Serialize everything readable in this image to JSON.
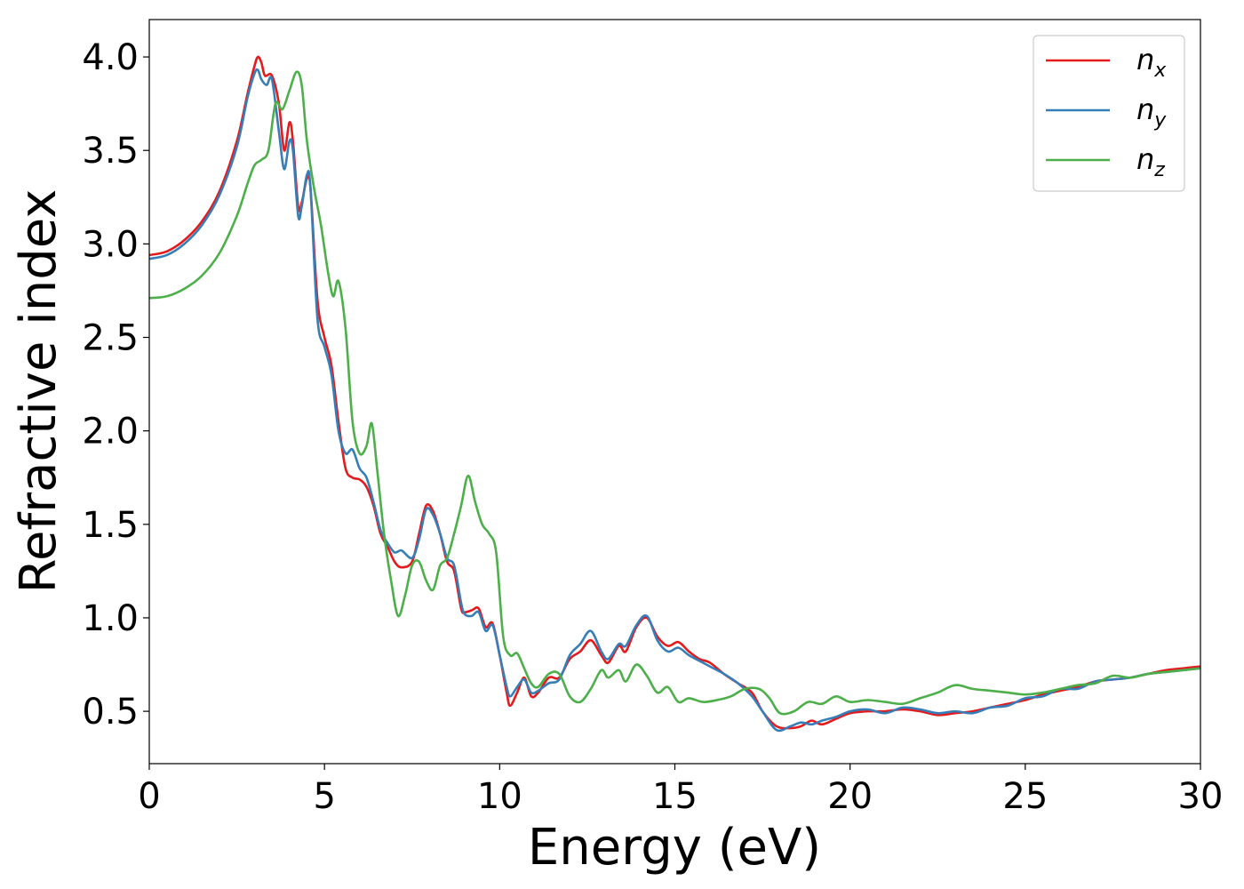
{
  "chart_data": {
    "type": "line",
    "xlabel": "Energy (eV)",
    "ylabel": "Refractive index",
    "xlim": [
      0,
      30
    ],
    "ylim": [
      0.22,
      4.2
    ],
    "xticks": [
      0,
      5,
      10,
      15,
      20,
      25,
      30
    ],
    "xtick_labels": [
      "0",
      "5",
      "10",
      "15",
      "20",
      "25",
      "30"
    ],
    "yticks": [
      0.5,
      1.0,
      1.5,
      2.0,
      2.5,
      3.0,
      3.5,
      4.0
    ],
    "ytick_labels": [
      "0.5",
      "1.0",
      "1.5",
      "2.0",
      "2.5",
      "3.0",
      "3.5",
      "4.0"
    ],
    "grid": false,
    "legend_position": "top-right",
    "series": [
      {
        "name": "n_x",
        "label_base": "n",
        "label_sub": "x",
        "color": "#e41a1c",
        "points": [
          [
            0,
            2.94
          ],
          [
            0.5,
            2.96
          ],
          [
            1.0,
            3.02
          ],
          [
            1.5,
            3.12
          ],
          [
            2.0,
            3.28
          ],
          [
            2.5,
            3.55
          ],
          [
            2.8,
            3.8
          ],
          [
            3.0,
            3.95
          ],
          [
            3.1,
            4.0
          ],
          [
            3.2,
            3.97
          ],
          [
            3.3,
            3.9
          ],
          [
            3.5,
            3.9
          ],
          [
            3.7,
            3.75
          ],
          [
            3.85,
            3.5
          ],
          [
            4.0,
            3.65
          ],
          [
            4.1,
            3.55
          ],
          [
            4.25,
            3.2
          ],
          [
            4.35,
            3.22
          ],
          [
            4.5,
            3.35
          ],
          [
            4.6,
            3.3
          ],
          [
            4.8,
            2.7
          ],
          [
            5.0,
            2.5
          ],
          [
            5.2,
            2.35
          ],
          [
            5.4,
            2.05
          ],
          [
            5.6,
            1.8
          ],
          [
            5.8,
            1.75
          ],
          [
            6.0,
            1.74
          ],
          [
            6.2,
            1.7
          ],
          [
            6.4,
            1.6
          ],
          [
            6.6,
            1.45
          ],
          [
            6.8,
            1.38
          ],
          [
            7.0,
            1.3
          ],
          [
            7.2,
            1.27
          ],
          [
            7.5,
            1.3
          ],
          [
            7.7,
            1.45
          ],
          [
            7.9,
            1.6
          ],
          [
            8.1,
            1.57
          ],
          [
            8.3,
            1.45
          ],
          [
            8.5,
            1.3
          ],
          [
            8.7,
            1.25
          ],
          [
            8.9,
            1.05
          ],
          [
            9.0,
            1.03
          ],
          [
            9.2,
            1.04
          ],
          [
            9.4,
            1.05
          ],
          [
            9.6,
            0.95
          ],
          [
            9.8,
            0.97
          ],
          [
            10.0,
            0.8
          ],
          [
            10.2,
            0.6
          ],
          [
            10.3,
            0.53
          ],
          [
            10.5,
            0.6
          ],
          [
            10.7,
            0.68
          ],
          [
            10.9,
            0.58
          ],
          [
            11.1,
            0.6
          ],
          [
            11.4,
            0.68
          ],
          [
            11.7,
            0.68
          ],
          [
            12.0,
            0.78
          ],
          [
            12.3,
            0.82
          ],
          [
            12.6,
            0.88
          ],
          [
            12.9,
            0.8
          ],
          [
            13.1,
            0.76
          ],
          [
            13.4,
            0.85
          ],
          [
            13.6,
            0.82
          ],
          [
            13.9,
            0.95
          ],
          [
            14.2,
            1.0
          ],
          [
            14.5,
            0.9
          ],
          [
            14.8,
            0.85
          ],
          [
            15.1,
            0.87
          ],
          [
            15.4,
            0.82
          ],
          [
            15.7,
            0.78
          ],
          [
            16.0,
            0.76
          ],
          [
            16.4,
            0.7
          ],
          [
            16.8,
            0.65
          ],
          [
            17.2,
            0.6
          ],
          [
            17.5,
            0.5
          ],
          [
            17.9,
            0.42
          ],
          [
            18.3,
            0.41
          ],
          [
            18.6,
            0.42
          ],
          [
            18.9,
            0.45
          ],
          [
            19.2,
            0.43
          ],
          [
            19.6,
            0.46
          ],
          [
            20.0,
            0.49
          ],
          [
            20.5,
            0.5
          ],
          [
            21.0,
            0.5
          ],
          [
            21.5,
            0.51
          ],
          [
            22.0,
            0.5
          ],
          [
            22.5,
            0.48
          ],
          [
            23.0,
            0.49
          ],
          [
            23.5,
            0.5
          ],
          [
            24.0,
            0.52
          ],
          [
            24.5,
            0.54
          ],
          [
            25.0,
            0.56
          ],
          [
            25.5,
            0.59
          ],
          [
            26.0,
            0.61
          ],
          [
            26.5,
            0.63
          ],
          [
            27.0,
            0.66
          ],
          [
            27.5,
            0.67
          ],
          [
            28.0,
            0.68
          ],
          [
            28.5,
            0.7
          ],
          [
            29.0,
            0.72
          ],
          [
            29.5,
            0.73
          ],
          [
            30.0,
            0.74
          ]
        ]
      },
      {
        "name": "n_y",
        "label_base": "n",
        "label_sub": "y",
        "color": "#377eb8",
        "points": [
          [
            0,
            2.92
          ],
          [
            0.5,
            2.94
          ],
          [
            1.0,
            3.0
          ],
          [
            1.5,
            3.1
          ],
          [
            2.0,
            3.26
          ],
          [
            2.5,
            3.52
          ],
          [
            2.8,
            3.78
          ],
          [
            3.0,
            3.91
          ],
          [
            3.1,
            3.93
          ],
          [
            3.2,
            3.88
          ],
          [
            3.35,
            3.85
          ],
          [
            3.5,
            3.88
          ],
          [
            3.7,
            3.6
          ],
          [
            3.85,
            3.4
          ],
          [
            4.0,
            3.55
          ],
          [
            4.1,
            3.5
          ],
          [
            4.25,
            3.15
          ],
          [
            4.35,
            3.2
          ],
          [
            4.5,
            3.37
          ],
          [
            4.6,
            3.3
          ],
          [
            4.8,
            2.6
          ],
          [
            5.0,
            2.45
          ],
          [
            5.2,
            2.3
          ],
          [
            5.4,
            2.0
          ],
          [
            5.6,
            1.88
          ],
          [
            5.8,
            1.9
          ],
          [
            6.0,
            1.8
          ],
          [
            6.2,
            1.75
          ],
          [
            6.4,
            1.62
          ],
          [
            6.6,
            1.47
          ],
          [
            6.8,
            1.4
          ],
          [
            7.0,
            1.35
          ],
          [
            7.2,
            1.36
          ],
          [
            7.5,
            1.32
          ],
          [
            7.7,
            1.42
          ],
          [
            7.9,
            1.58
          ],
          [
            8.1,
            1.55
          ],
          [
            8.3,
            1.45
          ],
          [
            8.5,
            1.32
          ],
          [
            8.7,
            1.28
          ],
          [
            8.9,
            1.08
          ],
          [
            9.0,
            1.02
          ],
          [
            9.2,
            1.01
          ],
          [
            9.4,
            1.03
          ],
          [
            9.6,
            0.93
          ],
          [
            9.8,
            0.96
          ],
          [
            10.0,
            0.8
          ],
          [
            10.2,
            0.63
          ],
          [
            10.3,
            0.58
          ],
          [
            10.5,
            0.63
          ],
          [
            10.7,
            0.67
          ],
          [
            10.9,
            0.6
          ],
          [
            11.1,
            0.61
          ],
          [
            11.4,
            0.65
          ],
          [
            11.7,
            0.67
          ],
          [
            12.0,
            0.8
          ],
          [
            12.3,
            0.86
          ],
          [
            12.6,
            0.93
          ],
          [
            12.9,
            0.82
          ],
          [
            13.1,
            0.78
          ],
          [
            13.4,
            0.86
          ],
          [
            13.6,
            0.85
          ],
          [
            13.9,
            0.96
          ],
          [
            14.2,
            1.01
          ],
          [
            14.5,
            0.88
          ],
          [
            14.8,
            0.82
          ],
          [
            15.1,
            0.84
          ],
          [
            15.4,
            0.8
          ],
          [
            15.7,
            0.77
          ],
          [
            16.0,
            0.74
          ],
          [
            16.4,
            0.7
          ],
          [
            16.8,
            0.65
          ],
          [
            17.2,
            0.58
          ],
          [
            17.5,
            0.5
          ],
          [
            17.9,
            0.4
          ],
          [
            18.3,
            0.42
          ],
          [
            18.6,
            0.44
          ],
          [
            18.9,
            0.43
          ],
          [
            19.2,
            0.45
          ],
          [
            19.6,
            0.47
          ],
          [
            20.0,
            0.5
          ],
          [
            20.5,
            0.51
          ],
          [
            21.0,
            0.49
          ],
          [
            21.5,
            0.52
          ],
          [
            22.0,
            0.51
          ],
          [
            22.5,
            0.49
          ],
          [
            23.0,
            0.5
          ],
          [
            23.5,
            0.49
          ],
          [
            24.0,
            0.52
          ],
          [
            24.5,
            0.53
          ],
          [
            25.0,
            0.57
          ],
          [
            25.5,
            0.58
          ],
          [
            26.0,
            0.62
          ],
          [
            26.5,
            0.62
          ],
          [
            27.0,
            0.66
          ],
          [
            27.5,
            0.67
          ],
          [
            28.0,
            0.68
          ],
          [
            28.5,
            0.7
          ],
          [
            29.0,
            0.71
          ],
          [
            29.5,
            0.72
          ],
          [
            30.0,
            0.73
          ]
        ]
      },
      {
        "name": "n_z",
        "label_base": "n",
        "label_sub": "z",
        "color": "#4daf4a",
        "points": [
          [
            0,
            2.71
          ],
          [
            0.5,
            2.72
          ],
          [
            1.0,
            2.76
          ],
          [
            1.5,
            2.83
          ],
          [
            2.0,
            2.95
          ],
          [
            2.5,
            3.15
          ],
          [
            2.8,
            3.32
          ],
          [
            3.0,
            3.42
          ],
          [
            3.2,
            3.45
          ],
          [
            3.4,
            3.5
          ],
          [
            3.6,
            3.75
          ],
          [
            3.8,
            3.72
          ],
          [
            4.0,
            3.82
          ],
          [
            4.2,
            3.92
          ],
          [
            4.35,
            3.85
          ],
          [
            4.5,
            3.55
          ],
          [
            4.7,
            3.3
          ],
          [
            4.9,
            3.1
          ],
          [
            5.1,
            2.85
          ],
          [
            5.25,
            2.72
          ],
          [
            5.4,
            2.8
          ],
          [
            5.6,
            2.55
          ],
          [
            5.8,
            2.05
          ],
          [
            6.0,
            1.88
          ],
          [
            6.2,
            1.92
          ],
          [
            6.35,
            2.04
          ],
          [
            6.5,
            1.8
          ],
          [
            6.7,
            1.45
          ],
          [
            6.9,
            1.2
          ],
          [
            7.1,
            1.01
          ],
          [
            7.3,
            1.12
          ],
          [
            7.5,
            1.28
          ],
          [
            7.7,
            1.3
          ],
          [
            7.9,
            1.2
          ],
          [
            8.1,
            1.15
          ],
          [
            8.3,
            1.28
          ],
          [
            8.5,
            1.32
          ],
          [
            8.7,
            1.45
          ],
          [
            8.9,
            1.6
          ],
          [
            9.1,
            1.76
          ],
          [
            9.3,
            1.62
          ],
          [
            9.5,
            1.5
          ],
          [
            9.7,
            1.45
          ],
          [
            9.9,
            1.35
          ],
          [
            10.1,
            0.9
          ],
          [
            10.3,
            0.8
          ],
          [
            10.5,
            0.81
          ],
          [
            10.7,
            0.73
          ],
          [
            10.9,
            0.65
          ],
          [
            11.1,
            0.63
          ],
          [
            11.4,
            0.7
          ],
          [
            11.7,
            0.7
          ],
          [
            12.0,
            0.58
          ],
          [
            12.3,
            0.55
          ],
          [
            12.6,
            0.62
          ],
          [
            12.9,
            0.72
          ],
          [
            13.1,
            0.68
          ],
          [
            13.4,
            0.72
          ],
          [
            13.6,
            0.66
          ],
          [
            13.9,
            0.75
          ],
          [
            14.2,
            0.69
          ],
          [
            14.5,
            0.6
          ],
          [
            14.8,
            0.63
          ],
          [
            15.1,
            0.55
          ],
          [
            15.4,
            0.57
          ],
          [
            15.8,
            0.55
          ],
          [
            16.2,
            0.56
          ],
          [
            16.6,
            0.58
          ],
          [
            17.0,
            0.62
          ],
          [
            17.4,
            0.62
          ],
          [
            17.7,
            0.57
          ],
          [
            18.0,
            0.49
          ],
          [
            18.4,
            0.5
          ],
          [
            18.8,
            0.55
          ],
          [
            19.2,
            0.54
          ],
          [
            19.6,
            0.58
          ],
          [
            20.0,
            0.55
          ],
          [
            20.5,
            0.56
          ],
          [
            21.0,
            0.55
          ],
          [
            21.5,
            0.54
          ],
          [
            22.0,
            0.57
          ],
          [
            22.5,
            0.6
          ],
          [
            23.0,
            0.64
          ],
          [
            23.5,
            0.62
          ],
          [
            24.0,
            0.61
          ],
          [
            24.5,
            0.6
          ],
          [
            25.0,
            0.59
          ],
          [
            25.5,
            0.6
          ],
          [
            26.0,
            0.62
          ],
          [
            26.5,
            0.64
          ],
          [
            27.0,
            0.65
          ],
          [
            27.5,
            0.69
          ],
          [
            28.0,
            0.68
          ],
          [
            28.5,
            0.7
          ],
          [
            29.0,
            0.71
          ],
          [
            29.5,
            0.72
          ],
          [
            30.0,
            0.73
          ]
        ]
      }
    ]
  }
}
